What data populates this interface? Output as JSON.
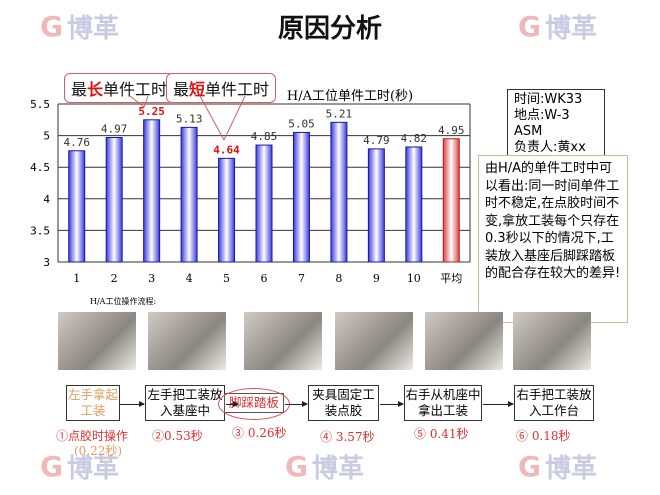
{
  "title": "原因分析",
  "watermark": "博革",
  "callouts": {
    "longest": {
      "pre": "最",
      "hl": "长",
      "post": "单件工时"
    },
    "shortest": {
      "pre": "最",
      "hl": "短",
      "post": "单件工时"
    }
  },
  "chart_data": {
    "type": "bar",
    "title": "H/A工位单件工时(秒)",
    "categories": [
      "1",
      "2",
      "3",
      "4",
      "5",
      "6",
      "7",
      "8",
      "9",
      "10",
      "平均"
    ],
    "values": [
      4.76,
      4.97,
      5.25,
      5.13,
      4.64,
      4.85,
      5.05,
      5.21,
      4.79,
      4.82,
      4.95
    ],
    "labels": [
      "4.76",
      "4.97",
      "5.25",
      "5.13",
      "4.64",
      "4.85",
      "5.05",
      "5.21",
      "4.79",
      "4.82",
      "4.95"
    ],
    "highlight": {
      "max_index": 2,
      "min_index": 4,
      "avg_index": 10
    },
    "yticks": [
      "3",
      "3.5",
      "4",
      "4.5",
      "5",
      "5.5"
    ],
    "ylim": [
      3,
      5.5
    ],
    "grid": true,
    "colors": {
      "bar": "#3a3ae0",
      "avg": "#e04040",
      "label_highlight": "#e01010"
    }
  },
  "flow_caption": "H/A工位操作流程:",
  "info": {
    "lines": [
      "时间:WK33",
      "地点:W-3",
      "ASM",
      "负责人:黄xx"
    ]
  },
  "note": "由H/A的单件工时中可以看出:同一时间单件工时不稳定,在点胶时间不变,拿放工装每个只存在0.3秒以下的情况下,工装放入基座后脚踩踏板的配合存在较大的差异!",
  "steps": [
    {
      "label": "左手拿起工装",
      "time": "①点胶时操作",
      "time2": "(0.22秒)"
    },
    {
      "label": "左手把工装放入基座中",
      "time": "②0.53秒"
    },
    {
      "label": "脚踩踏板",
      "time": "③ 0.26秒"
    },
    {
      "label": "夹具固定工装点胶",
      "time": "④ 3.57秒"
    },
    {
      "label": "右手从机座中拿出工装",
      "time": "⑤ 0.41秒"
    },
    {
      "label": "右手把工装放入工作台",
      "time": "⑥ 0.18秒"
    }
  ]
}
